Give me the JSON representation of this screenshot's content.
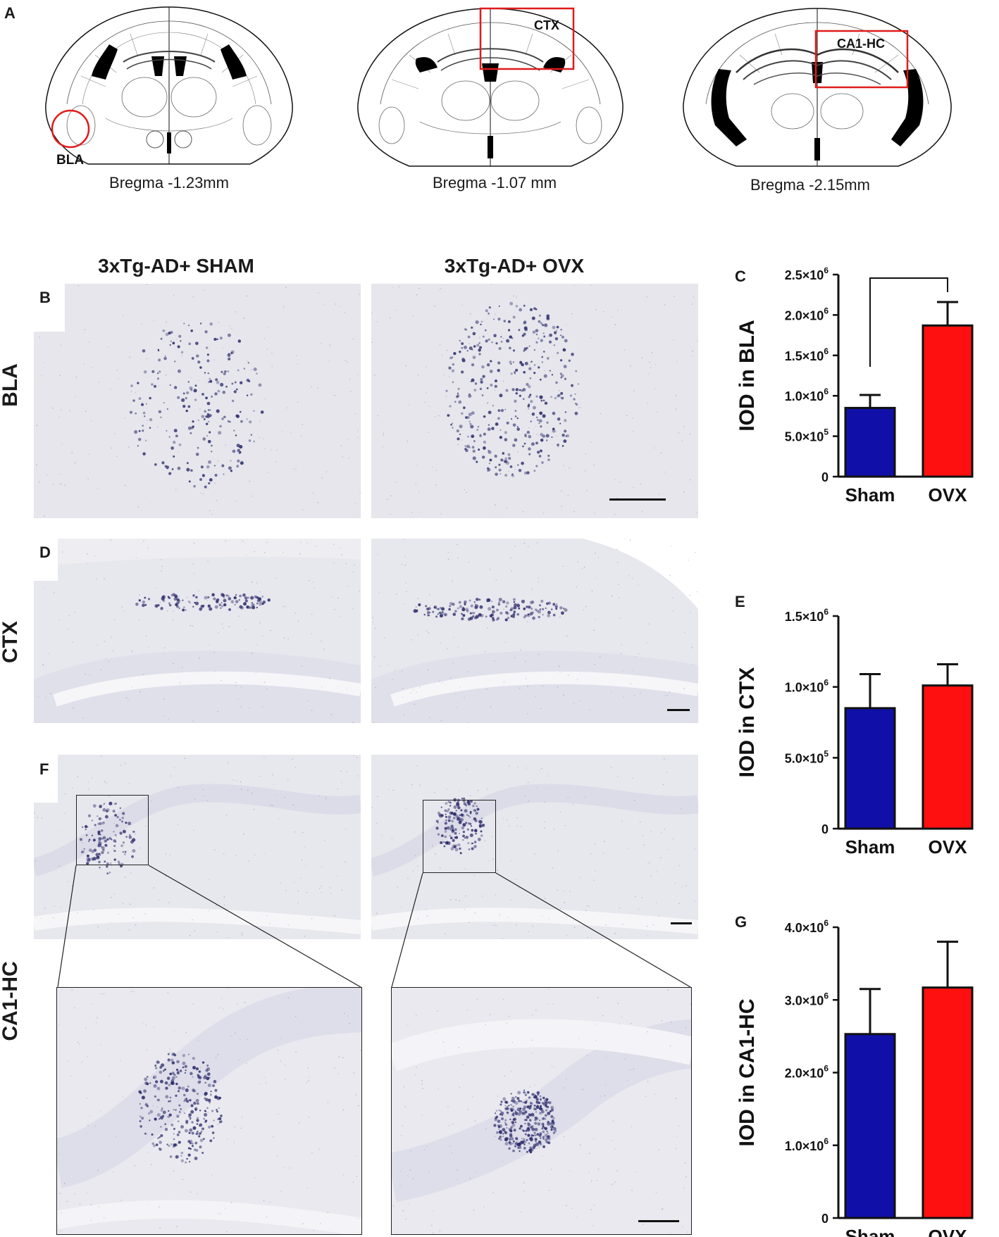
{
  "panel_A": {
    "letter": "A",
    "sections": [
      {
        "bregma": "Bregma -1.23mm",
        "region_label": "BLA"
      },
      {
        "bregma": "Bregma -1.07 mm",
        "region_label": "CTX"
      },
      {
        "bregma": "Bregma -2.15mm",
        "region_label": "CA1-HC"
      }
    ]
  },
  "columns": {
    "left": "3xTg-AD+ SHAM",
    "right": "3xTg-AD+ OVX"
  },
  "rows": {
    "bla": "BLA",
    "ctx": "CTX",
    "ca1": "CA1-HC"
  },
  "panel_letters": {
    "B": "B",
    "C": "C",
    "D": "D",
    "E": "E",
    "F": "F",
    "G": "G"
  },
  "colors": {
    "sham": "#1010a8",
    "ovx": "#ff1010",
    "stain": "#2a2a6a",
    "tissue": "#e9e9ee",
    "outline": "#111111"
  },
  "chart_data": [
    {
      "panel": "C",
      "type": "bar",
      "categories": [
        "Sham",
        "OVX"
      ],
      "values": [
        850000,
        1870000
      ],
      "errors": [
        160000,
        290000
      ],
      "ylabel": "IOD in BLA",
      "ylim": [
        0,
        2500000
      ],
      "yticks": [
        {
          "mant": "0",
          "exp": ""
        },
        {
          "mant": "5.0×10",
          "exp": "5"
        },
        {
          "mant": "1.0×10",
          "exp": "6"
        },
        {
          "mant": "1.5×10",
          "exp": "6"
        },
        {
          "mant": "2.0×10",
          "exp": "6"
        },
        {
          "mant": "2.5×10",
          "exp": "6"
        }
      ],
      "significance": "*"
    },
    {
      "panel": "E",
      "type": "bar",
      "categories": [
        "Sham",
        "OVX"
      ],
      "values": [
        850000,
        1010000
      ],
      "errors": [
        240000,
        150000
      ],
      "ylabel": "IOD in CTX",
      "ylim": [
        0,
        1500000
      ],
      "yticks": [
        {
          "mant": "0",
          "exp": ""
        },
        {
          "mant": "5.0×10",
          "exp": "5"
        },
        {
          "mant": "1.0×10",
          "exp": "6"
        },
        {
          "mant": "1.5×10",
          "exp": "6"
        }
      ],
      "significance": ""
    },
    {
      "panel": "G",
      "type": "bar",
      "categories": [
        "Sham",
        "OVX"
      ],
      "values": [
        2530000,
        3170000
      ],
      "errors": [
        620000,
        630000
      ],
      "ylabel": "IOD in CA1-HC",
      "ylim": [
        0,
        4000000
      ],
      "yticks": [
        {
          "mant": "0",
          "exp": ""
        },
        {
          "mant": "1.0×10",
          "exp": "6"
        },
        {
          "mant": "2.0×10",
          "exp": "6"
        },
        {
          "mant": "3.0×10",
          "exp": "6"
        },
        {
          "mant": "4.0×10",
          "exp": "6"
        }
      ],
      "significance": ""
    }
  ]
}
